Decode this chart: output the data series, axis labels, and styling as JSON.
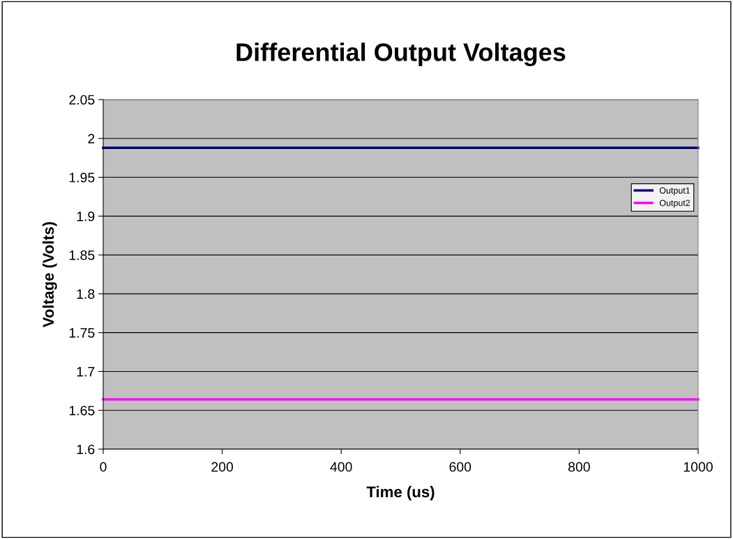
{
  "chart_data": {
    "type": "line",
    "title": "Differential Output Voltages",
    "xlabel": "Time (us)",
    "ylabel": "Voltage (Volts)",
    "x": [
      0,
      1000
    ],
    "series": [
      {
        "name": "Output1",
        "color": "#000080",
        "values": [
          1.988,
          1.988
        ]
      },
      {
        "name": "Output2",
        "color": "#ff00ff",
        "values": [
          1.664,
          1.664
        ]
      }
    ],
    "xlim": [
      0,
      1000
    ],
    "xticks": [
      0,
      200,
      400,
      600,
      800,
      1000
    ],
    "ylim": [
      1.6,
      2.05
    ],
    "yticks": [
      1.6,
      1.65,
      1.7,
      1.75,
      1.8,
      1.85,
      1.9,
      1.95,
      2,
      2.05
    ],
    "grid": "y",
    "legend": "right",
    "marker": "none",
    "line_style": "solid"
  }
}
